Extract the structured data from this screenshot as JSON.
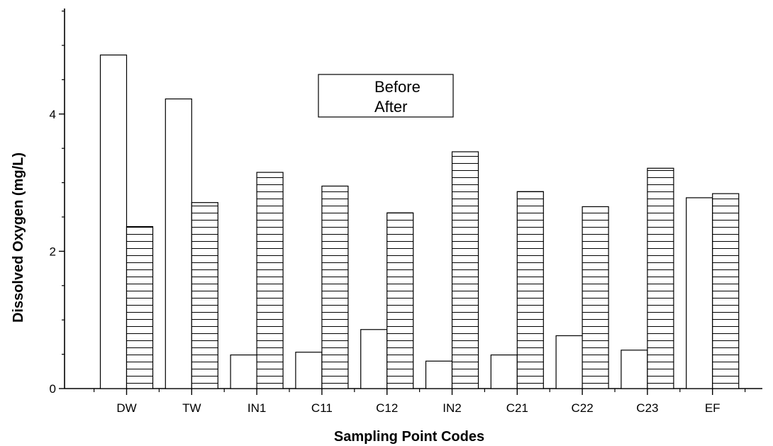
{
  "chart_data": {
    "type": "bar",
    "title": "",
    "xlabel": "Sampling Point Codes",
    "ylabel": "Dissolved Oxygen (mg/L)",
    "categories": [
      "DW",
      "TW",
      "IN1",
      "C11",
      "C12",
      "IN2",
      "C21",
      "C22",
      "C23",
      "EF"
    ],
    "series": [
      {
        "name": "Before",
        "values": [
          4.86,
          4.22,
          0.49,
          0.53,
          0.86,
          0.4,
          0.49,
          0.77,
          0.56,
          2.78
        ],
        "fill": "#ffffff",
        "pattern": "none"
      },
      {
        "name": "After",
        "values": [
          2.36,
          2.71,
          3.15,
          2.95,
          2.56,
          3.45,
          2.87,
          2.65,
          3.21,
          2.84
        ],
        "fill": "#ffffff",
        "pattern": "horizontal-lines"
      }
    ],
    "ylim": [
      0,
      5.5
    ],
    "yticks": [
      0,
      2,
      4
    ],
    "legend_position": "top-center",
    "grid": false,
    "colors": {
      "bar_stroke": "#000000",
      "background": "#ffffff"
    }
  }
}
